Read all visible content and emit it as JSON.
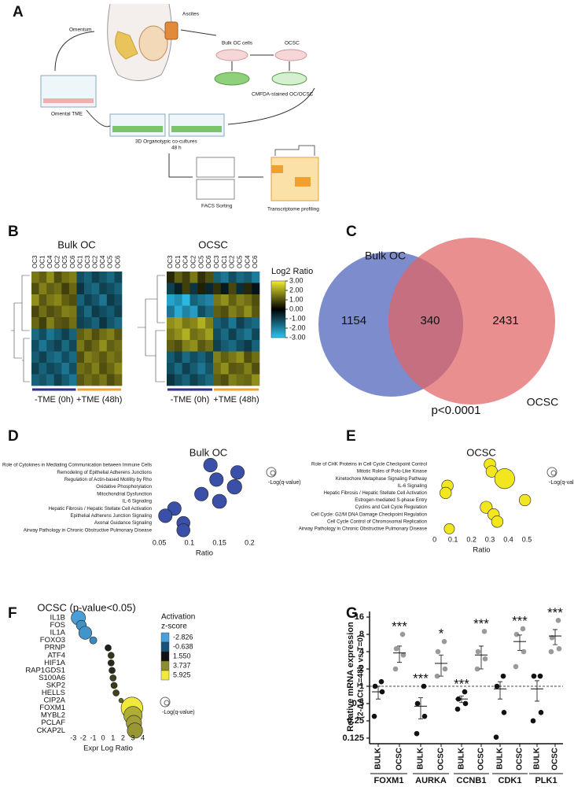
{
  "panel_labels": [
    "A",
    "B",
    "C",
    "D",
    "E",
    "F",
    "G"
  ],
  "figure_a": {
    "labels": [
      "Ascites",
      "Omentum",
      "Bulk OC cells",
      "OCSC",
      "CMFDA-stained OC/OCSC",
      "Omental TME",
      "3D Organotypic co-cultures",
      "48 h",
      "FACS Sorting",
      "Transcriptome profiling"
    ]
  },
  "chart_data": [
    {
      "type": "heatmap",
      "legend_title": "Log2 Ratio",
      "colorbar": {
        "lim": [
          -3,
          3
        ],
        "colors": [
          "#2ec4f2",
          "#000000",
          "#f2ee2e"
        ],
        "ticks": [
          {
            "value": 3,
            "label": "3.00"
          },
          {
            "value": 2,
            "label": "2.00"
          },
          {
            "value": 1,
            "label": "1.00"
          },
          {
            "value": 0,
            "label": "0.00"
          },
          {
            "value": -1,
            "label": "-1.00"
          },
          {
            "value": -2,
            "label": "-2.00"
          },
          {
            "value": -3,
            "label": "-3.00"
          }
        ]
      },
      "groups": [
        "-TME (0h)",
        "+TME (48h)"
      ],
      "group_colors": [
        "#2b2f8f",
        "#f0a030"
      ],
      "heatmaps": [
        {
          "title": "Bulk OC",
          "columns": [
            "OC3",
            "OC1",
            "OC4",
            "OC2",
            "OC5",
            "OC6",
            "OC1",
            "OC3",
            "OC2",
            "OC4",
            "OC5",
            "OC6"
          ],
          "values": [
            [
              1.5,
              1.2,
              1.8,
              1.0,
              1.4,
              1.6,
              -1.2,
              -1.5,
              -1.0,
              -1.3,
              -1.6,
              -1.1
            ],
            [
              1.0,
              1.6,
              1.2,
              1.4,
              0.8,
              1.3,
              -0.8,
              -1.4,
              -1.6,
              -1.0,
              -1.2,
              -1.5
            ],
            [
              1.8,
              1.1,
              1.5,
              1.7,
              1.2,
              1.0,
              -1.5,
              -1.0,
              -1.3,
              -1.8,
              -0.9,
              -1.2
            ],
            [
              0.9,
              1.4,
              1.0,
              1.2,
              1.6,
              1.5,
              -1.1,
              -1.6,
              -0.9,
              -1.2,
              -1.4,
              -1.0
            ],
            [
              1.3,
              0.8,
              1.6,
              1.1,
              1.0,
              1.4,
              -1.0,
              -1.2,
              -1.5,
              -0.8,
              -1.3,
              -1.6
            ],
            [
              -1.6,
              -1.2,
              -1.8,
              -1.4,
              -1.0,
              -1.5,
              1.2,
              1.5,
              1.0,
              1.4,
              1.6,
              1.1
            ],
            [
              -1.2,
              -1.8,
              -1.3,
              -1.0,
              -1.6,
              -1.1,
              1.5,
              1.0,
              1.3,
              1.8,
              1.2,
              1.4
            ],
            [
              -1.4,
              -1.0,
              -1.5,
              -1.7,
              -1.2,
              -1.6,
              1.0,
              1.6,
              1.4,
              1.1,
              1.5,
              1.3
            ],
            [
              -1.0,
              -1.5,
              -1.1,
              -1.3,
              -1.8,
              -1.2,
              1.4,
              1.2,
              1.6,
              1.0,
              1.3,
              1.7
            ],
            [
              -1.5,
              -1.3,
              -1.6,
              -1.0,
              -1.4,
              -1.8,
              1.1,
              1.4,
              1.2,
              1.5,
              1.0,
              1.3
            ]
          ]
        },
        {
          "title": "OCSC",
          "columns": [
            "OC3",
            "OC1",
            "OC4",
            "OC2",
            "OC5",
            "OC6",
            "OC3",
            "OC1",
            "OC2",
            "OC5",
            "OC4",
            "OC6"
          ],
          "values": [
            [
              0.5,
              1.2,
              0.8,
              1.5,
              0.6,
              1.0,
              -1.5,
              -1.8,
              -1.2,
              -1.6,
              -1.4,
              -1.9
            ],
            [
              -1.0,
              -0.5,
              0.8,
              -0.8,
              0.4,
              -0.6,
              0.6,
              -0.4,
              0.9,
              -0.7,
              0.5,
              -0.3
            ],
            [
              -2.5,
              -2.2,
              -2.8,
              -1.5,
              -1.8,
              -2.0,
              1.5,
              1.8,
              1.2,
              1.6,
              1.4,
              1.0
            ],
            [
              -1.8,
              -2.6,
              -2.0,
              -2.4,
              -1.2,
              -1.6,
              1.2,
              1.0,
              1.6,
              1.3,
              1.8,
              1.1
            ],
            [
              1.8,
              2.0,
              1.5,
              1.7,
              2.2,
              1.6,
              -1.5,
              -1.2,
              -1.8,
              -1.0,
              -1.4,
              -1.6
            ],
            [
              1.5,
              1.8,
              2.2,
              1.4,
              1.6,
              2.0,
              -1.2,
              -1.6,
              -1.0,
              -1.5,
              -1.8,
              -1.1
            ],
            [
              1.2,
              1.0,
              1.6,
              1.8,
              1.1,
              1.4,
              -1.0,
              -1.4,
              -1.6,
              -1.2,
              -0.9,
              -1.5
            ],
            [
              -1.4,
              -1.0,
              -1.6,
              -1.2,
              -1.5,
              -1.1,
              1.6,
              1.2,
              1.5,
              1.8,
              1.0,
              1.4
            ],
            [
              -1.2,
              -1.6,
              -1.0,
              -1.4,
              -1.8,
              -1.3,
              1.4,
              1.8,
              1.1,
              1.2,
              1.6,
              1.0
            ],
            [
              -0.8,
              -1.2,
              -1.5,
              -1.0,
              -1.3,
              -1.6,
              1.2,
              1.0,
              1.6,
              1.4,
              1.3,
              1.8
            ]
          ]
        }
      ]
    },
    {
      "type": "venn",
      "sets": [
        {
          "name": "Bulk OC",
          "value": 1154,
          "color": "#6f7fc7"
        },
        {
          "name": "OCSC",
          "value": 2431,
          "color": "#e06464"
        }
      ],
      "intersection": 340,
      "annotation": "p<0.0001"
    },
    {
      "type": "bubble",
      "title": "Bulk OC",
      "color": "#3a4fa8",
      "categories": [
        "Role of Cytokines in Mediating Communication between Immune Cells",
        "Remodeling of Epithelial Adherens Junctions",
        "Regulation of Actin-based Motility by Rho",
        "Oxidative Phosphorylation",
        "Mitochondrial Dysfunction",
        "IL-6 Signaling",
        "Hepatic Fibrosis / Hepatic Stellate Cell Activation",
        "Epithelial Adherens Junction Signaling",
        "Axonal Guidance Signaling",
        "Airway Pathology in Chronic Obstructive Pulmonary Disease"
      ],
      "values": [
        0.135,
        0.18,
        0.145,
        0.175,
        0.12,
        0.15,
        0.075,
        0.06,
        0.09,
        0.09
      ],
      "sizes": [
        2.8,
        2.8,
        2.8,
        3.2,
        2.8,
        3.0,
        2.8,
        2.8,
        2.6,
        2.6
      ],
      "xlabel": "Ratio",
      "xlim": [
        0.04,
        0.21
      ],
      "xticks": [
        0.05,
        0.1,
        0.15,
        0.2
      ],
      "size_label": "-Log(q-value)"
    },
    {
      "type": "bubble",
      "title": "OCSC",
      "color": "#f2e61e",
      "categories": [
        "Role of CHK Proteins in Cell Cycle Checkpoint Control",
        "Mitotic Roles of Polo-Like Kinase",
        "Kinetochore Metaphase Signaling Pathway",
        "IL-6 Signaling",
        "Hepatic Fibrosis / Hepatic Stellate Cell Activation",
        "Estrogen-mediated S-phase Entry",
        "Cyclins and Cell Cycle Regulation",
        "Cell Cycle: G2/M DNA Damage Checkpoint Regulation",
        "Cell Cycle Control of Chromosomal Replication",
        "Airway Pathology in Chronic Obstructive Pulmonary Disease"
      ],
      "values": [
        0.3,
        0.31,
        0.38,
        0.07,
        0.06,
        0.49,
        0.28,
        0.32,
        0.34,
        0.08
      ],
      "sizes": [
        2,
        2,
        6,
        2,
        2,
        2,
        2.2,
        2,
        2,
        1.6
      ],
      "xlabel": "Ratio",
      "xlim": [
        -0.02,
        0.53
      ],
      "xticks": [
        0,
        0.1,
        0.2,
        0.3,
        0.4,
        0.5
      ],
      "size_label": "-Log(q-value)"
    },
    {
      "type": "bubble",
      "title": "OCSC (p-value<0.05)",
      "categories": [
        "IL1B",
        "FOS",
        "IL1A",
        "FOXO3",
        "PRNP",
        "ATF4",
        "HIF1A",
        "RAP1GDS1",
        "S100A6",
        "SKP2",
        "HELLS",
        "CIP2A",
        "FOXM1",
        "MYBL2",
        "PCLAF",
        "CKAP2L"
      ],
      "values": [
        -2.5,
        -2.2,
        -1.8,
        -1.0,
        0.5,
        0.8,
        0.8,
        0.9,
        1.0,
        1.1,
        1.3,
        1.8,
        2.9,
        3.0,
        3.1,
        3.2
      ],
      "sizes": [
        3,
        1.5,
        2.5,
        0.8,
        0.6,
        0.6,
        0.6,
        0.6,
        0.6,
        0.6,
        0.6,
        0.3,
        7,
        5,
        3.5,
        3.5
      ],
      "z_scores": [
        -2.8,
        -2.4,
        -2.5,
        -2.2,
        1.8,
        2.2,
        2.0,
        2.0,
        2.4,
        2.3,
        2.4,
        3.0,
        5.9,
        4.5,
        4.2,
        4.0
      ],
      "zscore_legend": {
        "title": [
          "Activation",
          "z-score"
        ],
        "values": [
          -2.826,
          -0.638,
          {
            "value": 1.55,
            "label": "1.550"
          },
          3.737,
          5.925
        ],
        "colors": [
          "#4a9fd8",
          "#17527e",
          "#111111",
          "#8c8c32",
          "#f2ea3a"
        ]
      },
      "xlabel": "Expr Log Ratio",
      "xlim": [
        -3.5,
        4.5
      ],
      "xticks": [
        -3,
        -2,
        -1,
        0,
        1,
        2,
        3,
        4
      ],
      "size_label": "-Log(q-value)"
    },
    {
      "type": "dot",
      "ylabel": [
        "Relative mRNA expression",
        "(2-ΔΔCt T=48h vs T=0)"
      ],
      "categories": [
        "FOXM1",
        "AURKA",
        "CCNB1",
        "CDK1",
        "PLK1"
      ],
      "yscale": "log",
      "ylim": [
        0.1,
        20
      ],
      "yticks": [
        16,
        8,
        4,
        2,
        1,
        0.5,
        0.25,
        0.125
      ],
      "reference_line": 1,
      "series": [
        {
          "name": "BULK",
          "color": "#111111",
          "points": [
            [
              0.3,
              0.8,
              1.0,
              1.2
            ],
            [
              0.15,
              0.3,
              0.5,
              1.0
            ],
            [
              0.4,
              0.5,
              0.6,
              0.8
            ],
            [
              0.13,
              0.35,
              1.0,
              1.5
            ],
            [
              0.25,
              0.35,
              1.5,
              1.5
            ]
          ],
          "mean": [
            0.8,
            0.45,
            0.6,
            0.9,
            0.9
          ],
          "sem": [
            0.2,
            0.18,
            0.08,
            0.3,
            0.35
          ],
          "stars": [
            null,
            "***",
            "***",
            null,
            null
          ]
        },
        {
          "name": "OCSC",
          "color": "#9a9a9a",
          "points": [
            [
              2.0,
              3.5,
              4.5,
              8
            ],
            [
              1.5,
              2,
              4,
              6
            ],
            [
              2,
              3,
              4,
              9
            ],
            [
              2.2,
              4,
              8,
              10
            ],
            [
              4,
              4.5,
              7,
              14
            ]
          ],
          "mean": [
            3.8,
            2.5,
            3.5,
            6,
            7.5
          ],
          "sem": [
            1.2,
            1.0,
            1.5,
            1.8,
            2.2
          ],
          "stars": [
            "***",
            "*",
            "***",
            "***",
            "***"
          ]
        }
      ]
    }
  ]
}
